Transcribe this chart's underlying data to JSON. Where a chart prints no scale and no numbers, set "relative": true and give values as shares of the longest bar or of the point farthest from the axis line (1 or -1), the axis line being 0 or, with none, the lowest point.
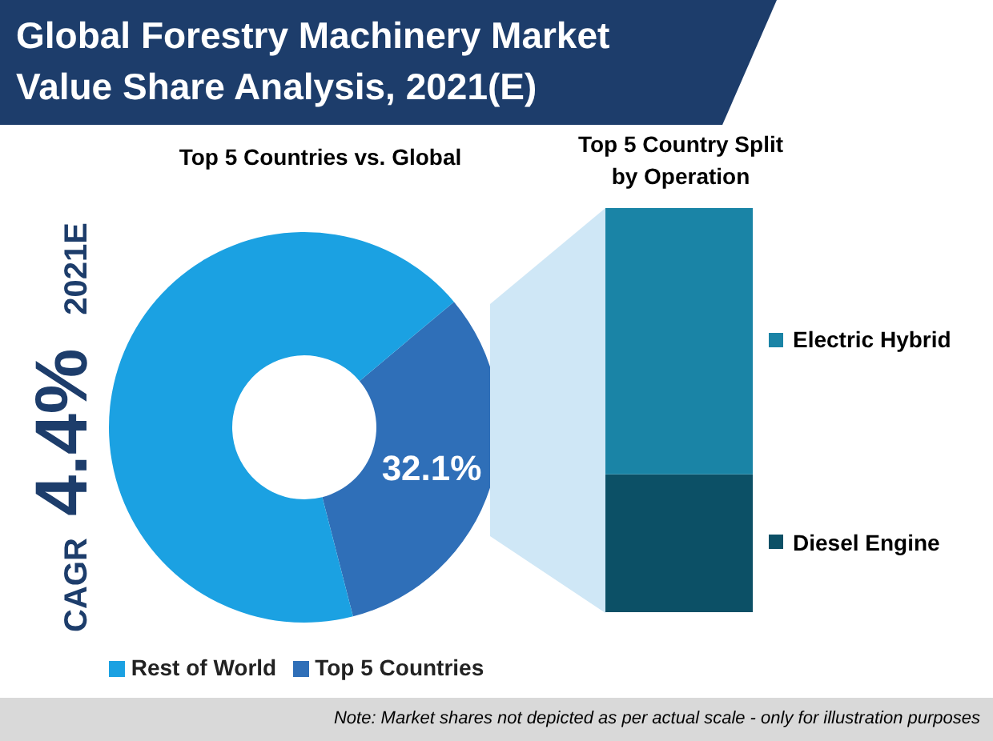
{
  "chart_data": [
    {
      "type": "donut",
      "title": "Global Forestry Machinery Market Value Share Analysis, 2021(E)",
      "subtitle": "Top 5 Countries vs. Global",
      "categories": [
        "Top 5 Countries",
        "Rest of World"
      ],
      "values": [
        32.1,
        67.9
      ],
      "colors": [
        "#2f6fb8",
        "#1ba1e2"
      ],
      "value_labels": [
        "32.1%",
        null
      ],
      "legend": "bottom",
      "annotations": [
        "CAGR 4.4% 2021E",
        "Note: Market shares not depicted as per actual scale - only for illustration purposes"
      ]
    },
    {
      "type": "bar",
      "title": "Top 5 Country Split by Operation",
      "stacked": true,
      "relative": true,
      "categories": [
        null
      ],
      "legend": "right",
      "series": [
        {
          "name": "Diesel Engine",
          "color": "#0c5066",
          "values": [
            0.34
          ]
        },
        {
          "name": "Electric Hybrid",
          "color": "#1a84a6",
          "values": [
            0.66
          ]
        }
      ]
    }
  ]
}
